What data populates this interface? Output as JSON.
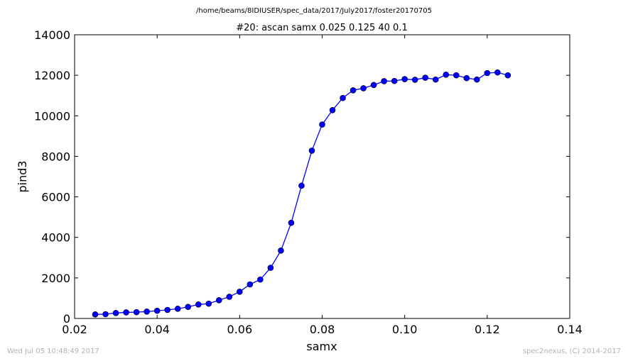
{
  "figure": {
    "suptitle": "/home/beams/8IDIUSER/spec_data/2017/July2017/foster20170705",
    "footer_left": "Wed Jul 05 10:48:49 2017",
    "footer_right": "spec2nexus, (C) 2014-2017"
  },
  "chart_data": {
    "type": "line",
    "title": "#20: ascan  samx 0.025 0.125  40 0.1",
    "xlabel": "samx",
    "ylabel": "pind3",
    "xlim": [
      0.02,
      0.14
    ],
    "ylim": [
      0,
      14000
    ],
    "xticks": [
      "0.02",
      "0.04",
      "0.06",
      "0.08",
      "0.10",
      "0.12",
      "0.14"
    ],
    "yticks": [
      "0",
      "2000",
      "4000",
      "6000",
      "8000",
      "10000",
      "12000",
      "14000"
    ],
    "grid": false,
    "legend": "none",
    "series": [
      {
        "color": "#0000ff",
        "marker": "circle",
        "x": [
          0.025,
          0.0275,
          0.03,
          0.0325,
          0.035,
          0.0375,
          0.04,
          0.0425,
          0.045,
          0.0475,
          0.05,
          0.0525,
          0.055,
          0.0575,
          0.06,
          0.0625,
          0.065,
          0.0675,
          0.07,
          0.0725,
          0.075,
          0.0775,
          0.08,
          0.0825,
          0.085,
          0.0875,
          0.09,
          0.0925,
          0.095,
          0.0975,
          0.1,
          0.1025,
          0.105,
          0.1075,
          0.11,
          0.1125,
          0.115,
          0.1175,
          0.12,
          0.1225,
          0.125
        ],
        "y": [
          200,
          210,
          270,
          300,
          310,
          340,
          380,
          420,
          480,
          570,
          690,
          730,
          900,
          1070,
          1320,
          1680,
          1920,
          2500,
          3350,
          4720,
          6550,
          8280,
          9570,
          10280,
          10880,
          11260,
          11360,
          11520,
          11710,
          11720,
          11810,
          11780,
          11880,
          11790,
          12030,
          12000,
          11860,
          11790,
          12110,
          12140,
          12000
        ]
      }
    ]
  }
}
